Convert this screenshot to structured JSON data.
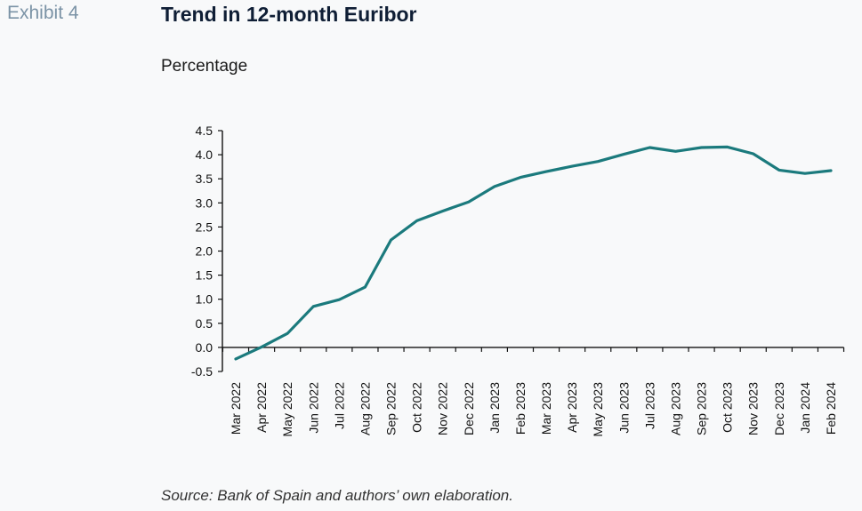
{
  "header": {
    "exhibit": "Exhibit 4",
    "title": "Trend in 12-month Euribor",
    "subtitle": "Percentage"
  },
  "footer": {
    "source": "Source: Bank of Spain and authors’ own elaboration."
  },
  "colors": {
    "line": "#1b7a7d",
    "axis": "#111111",
    "background": "#f8f9fa"
  },
  "chart_data": {
    "type": "line",
    "title": "Trend in 12-month Euribor",
    "ylabel": "Percentage",
    "xlabel": "",
    "ylim": [
      -0.5,
      4.5
    ],
    "yticks": [
      -0.5,
      0.0,
      0.5,
      1.0,
      1.5,
      2.0,
      2.5,
      3.0,
      3.5,
      4.0,
      4.5
    ],
    "ytick_labels": [
      "-0.5",
      "0.0",
      "0.5",
      "1.0",
      "1.5",
      "2.0",
      "2.5",
      "3.0",
      "3.5",
      "4.0",
      "4.5"
    ],
    "grid": false,
    "legend": "none",
    "categories": [
      "Mar 2022",
      "Apr 2022",
      "May 2022",
      "Jun 2022",
      "Jul 2022",
      "Aug 2022",
      "Sep 2022",
      "Oct 2022",
      "Nov 2022",
      "Dec 2022",
      "Jan 2023",
      "Feb 2023",
      "Mar 2023",
      "Apr 2023",
      "May 2023",
      "Jun 2023",
      "Jul 2023",
      "Aug 2023",
      "Sep 2023",
      "Oct 2023",
      "Nov 2023",
      "Dec 2023",
      "Jan 2024",
      "Feb 2024"
    ],
    "series": [
      {
        "values": [
          -0.24,
          0.01,
          0.29,
          0.85,
          0.99,
          1.25,
          2.23,
          2.63,
          2.83,
          3.02,
          3.34,
          3.53,
          3.65,
          3.76,
          3.86,
          4.01,
          4.15,
          4.07,
          4.15,
          4.16,
          4.02,
          3.68,
          3.61,
          3.67
        ]
      }
    ]
  }
}
